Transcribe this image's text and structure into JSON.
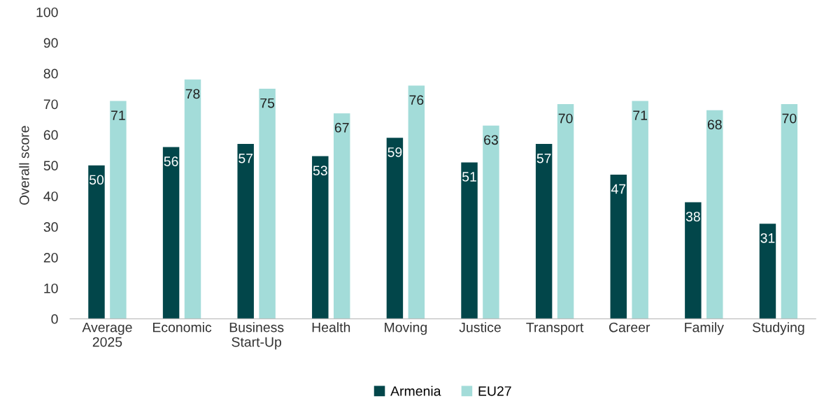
{
  "chart_data": {
    "type": "bar",
    "ylabel": "Overall score",
    "categories": [
      "Average\n2025",
      "Economic",
      "Business\nStart-Up",
      "Health",
      "Moving",
      "Justice",
      "Transport",
      "Career",
      "Family",
      "Studying"
    ],
    "series": [
      {
        "name": "Armenia",
        "color": "#02464a",
        "values": [
          50,
          56,
          57,
          53,
          59,
          51,
          57,
          47,
          38,
          31
        ]
      },
      {
        "name": "EU27",
        "color": "#a3dcd9",
        "values": [
          71,
          78,
          75,
          67,
          76,
          63,
          70,
          71,
          68,
          70
        ]
      }
    ],
    "ylim": [
      0,
      100
    ],
    "yticks": [
      0,
      10,
      20,
      30,
      40,
      50,
      60,
      70,
      80,
      90,
      100
    ],
    "data_labels": true,
    "grid": false,
    "legend": "bottom"
  }
}
